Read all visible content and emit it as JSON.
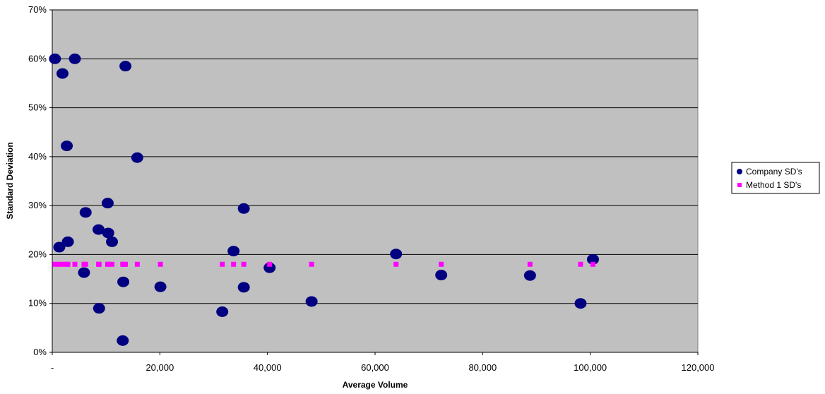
{
  "chart_data": {
    "type": "scatter",
    "title": "",
    "xlabel": "Average Volume",
    "ylabel": "Standard Deviation",
    "xlim": [
      0,
      120000
    ],
    "ylim": [
      0,
      0.7
    ],
    "x_ticks": [
      0,
      20000,
      40000,
      60000,
      80000,
      100000,
      120000
    ],
    "x_tick_labels": [
      "-",
      "20,000",
      "40,000",
      "60,000",
      "80,000",
      "100,000",
      "120,000"
    ],
    "y_ticks": [
      0,
      0.1,
      0.2,
      0.3,
      0.4,
      0.5,
      0.6,
      0.7
    ],
    "y_tick_labels": [
      "0%",
      "10%",
      "20%",
      "30%",
      "40%",
      "50%",
      "60%",
      "70%"
    ],
    "grid": "horizontal",
    "plot_background": "#c0c0c0",
    "legend_position": "right",
    "series": [
      {
        "name": "Company SD's",
        "marker": "circle",
        "color": "#000080",
        "points": [
          [
            500,
            0.6
          ],
          [
            4200,
            0.6
          ],
          [
            13600,
            0.585
          ],
          [
            1900,
            0.57
          ],
          [
            2700,
            0.422
          ],
          [
            15800,
            0.398
          ],
          [
            10300,
            0.305
          ],
          [
            6200,
            0.286
          ],
          [
            35600,
            0.294
          ],
          [
            8600,
            0.251
          ],
          [
            10400,
            0.244
          ],
          [
            11100,
            0.226
          ],
          [
            2900,
            0.226
          ],
          [
            1300,
            0.215
          ],
          [
            33700,
            0.207
          ],
          [
            63900,
            0.201
          ],
          [
            100500,
            0.19
          ],
          [
            40400,
            0.173
          ],
          [
            5900,
            0.163
          ],
          [
            72300,
            0.158
          ],
          [
            88800,
            0.157
          ],
          [
            13200,
            0.144
          ],
          [
            20100,
            0.134
          ],
          [
            35600,
            0.133
          ],
          [
            48200,
            0.104
          ],
          [
            98200,
            0.1
          ],
          [
            8700,
            0.09
          ],
          [
            31600,
            0.083
          ],
          [
            13100,
            0.024
          ]
        ]
      },
      {
        "name": "Method 1 SD's",
        "marker": "square",
        "color": "#ff00ff",
        "points": [
          [
            500,
            0.18
          ],
          [
            1300,
            0.18
          ],
          [
            1900,
            0.18
          ],
          [
            2700,
            0.18
          ],
          [
            2900,
            0.18
          ],
          [
            4200,
            0.18
          ],
          [
            5900,
            0.18
          ],
          [
            6200,
            0.18
          ],
          [
            8600,
            0.18
          ],
          [
            8700,
            0.18
          ],
          [
            10300,
            0.18
          ],
          [
            10400,
            0.18
          ],
          [
            11100,
            0.18
          ],
          [
            13100,
            0.18
          ],
          [
            13200,
            0.18
          ],
          [
            13600,
            0.18
          ],
          [
            15800,
            0.18
          ],
          [
            20100,
            0.18
          ],
          [
            31600,
            0.18
          ],
          [
            33700,
            0.18
          ],
          [
            35600,
            0.18
          ],
          [
            40400,
            0.18
          ],
          [
            48200,
            0.18
          ],
          [
            63900,
            0.18
          ],
          [
            72300,
            0.18
          ],
          [
            88800,
            0.18
          ],
          [
            98200,
            0.18
          ],
          [
            100500,
            0.18
          ]
        ]
      }
    ]
  }
}
